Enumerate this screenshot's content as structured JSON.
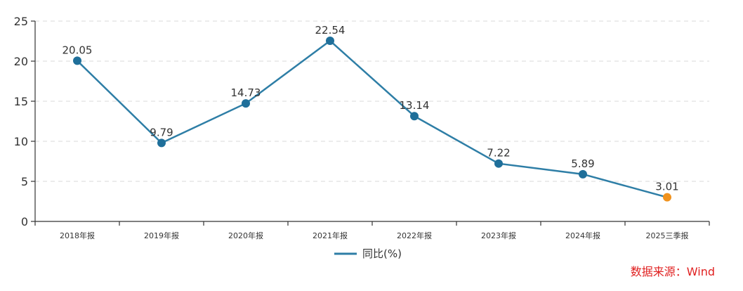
{
  "chart_data": {
    "type": "line",
    "categories": [
      "2018年报",
      "2019年报",
      "2020年报",
      "2021年报",
      "2022年报",
      "2023年报",
      "2024年报",
      "2025三季报"
    ],
    "series": [
      {
        "name": "同比(%)",
        "values": [
          20.05,
          9.79,
          14.73,
          22.54,
          13.14,
          7.22,
          5.89,
          3.01
        ],
        "color": "#2e7ea6",
        "marker_color": "#1f6f9a",
        "highlight_last_color": "#f0921d"
      }
    ],
    "data_labels": [
      "20.05",
      "9.79",
      "14.73",
      "22.54",
      "13.14",
      "7.22",
      "5.89",
      "3.01"
    ],
    "ylim": [
      0,
      25
    ],
    "yticks": [
      0,
      5,
      10,
      15,
      20,
      25
    ],
    "ytick_labels": [
      "0",
      "5",
      "10",
      "15",
      "20",
      "25"
    ],
    "grid": true,
    "legend": "bottom-center",
    "xlabel": "",
    "ylabel": ""
  },
  "source_note": "数据来源：Wind"
}
